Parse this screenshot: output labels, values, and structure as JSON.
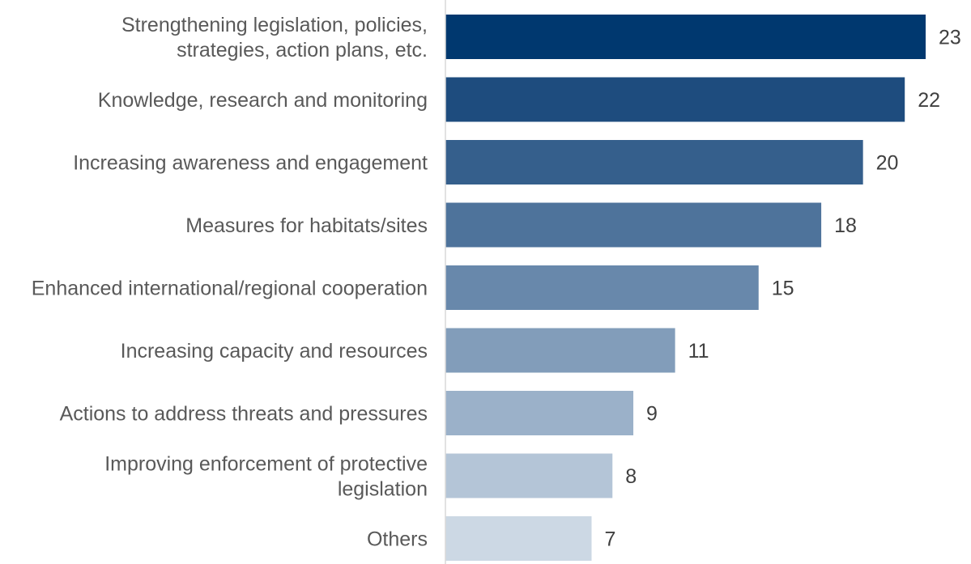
{
  "chart_data": {
    "type": "bar",
    "orientation": "horizontal",
    "title": "",
    "xlabel": "",
    "ylabel": "",
    "xlim": [
      0,
      24
    ],
    "grid": false,
    "legend": "none",
    "categories": [
      [
        "Strengthening legislation, policies,",
        "strategies, action plans, etc."
      ],
      [
        "Knowledge, research and monitoring"
      ],
      [
        "Increasing awareness and engagement"
      ],
      [
        "Measures for habitats/sites"
      ],
      [
        "Enhanced international/regional cooperation"
      ],
      [
        "Increasing capacity and resources"
      ],
      [
        "Actions to address threats and pressures"
      ],
      [
        "Improving enforcement of protective",
        "legislation"
      ],
      [
        "Others"
      ]
    ],
    "values": [
      23,
      22,
      20,
      18,
      15,
      11,
      9,
      8,
      7
    ],
    "colors": [
      "#00386f",
      "#1e4c7e",
      "#355f8c",
      "#4e739b",
      "#6888ab",
      "#829dba",
      "#9bb1c9",
      "#b4c5d7",
      "#ccd8e4"
    ],
    "axis_color": "#d9d9d9"
  }
}
